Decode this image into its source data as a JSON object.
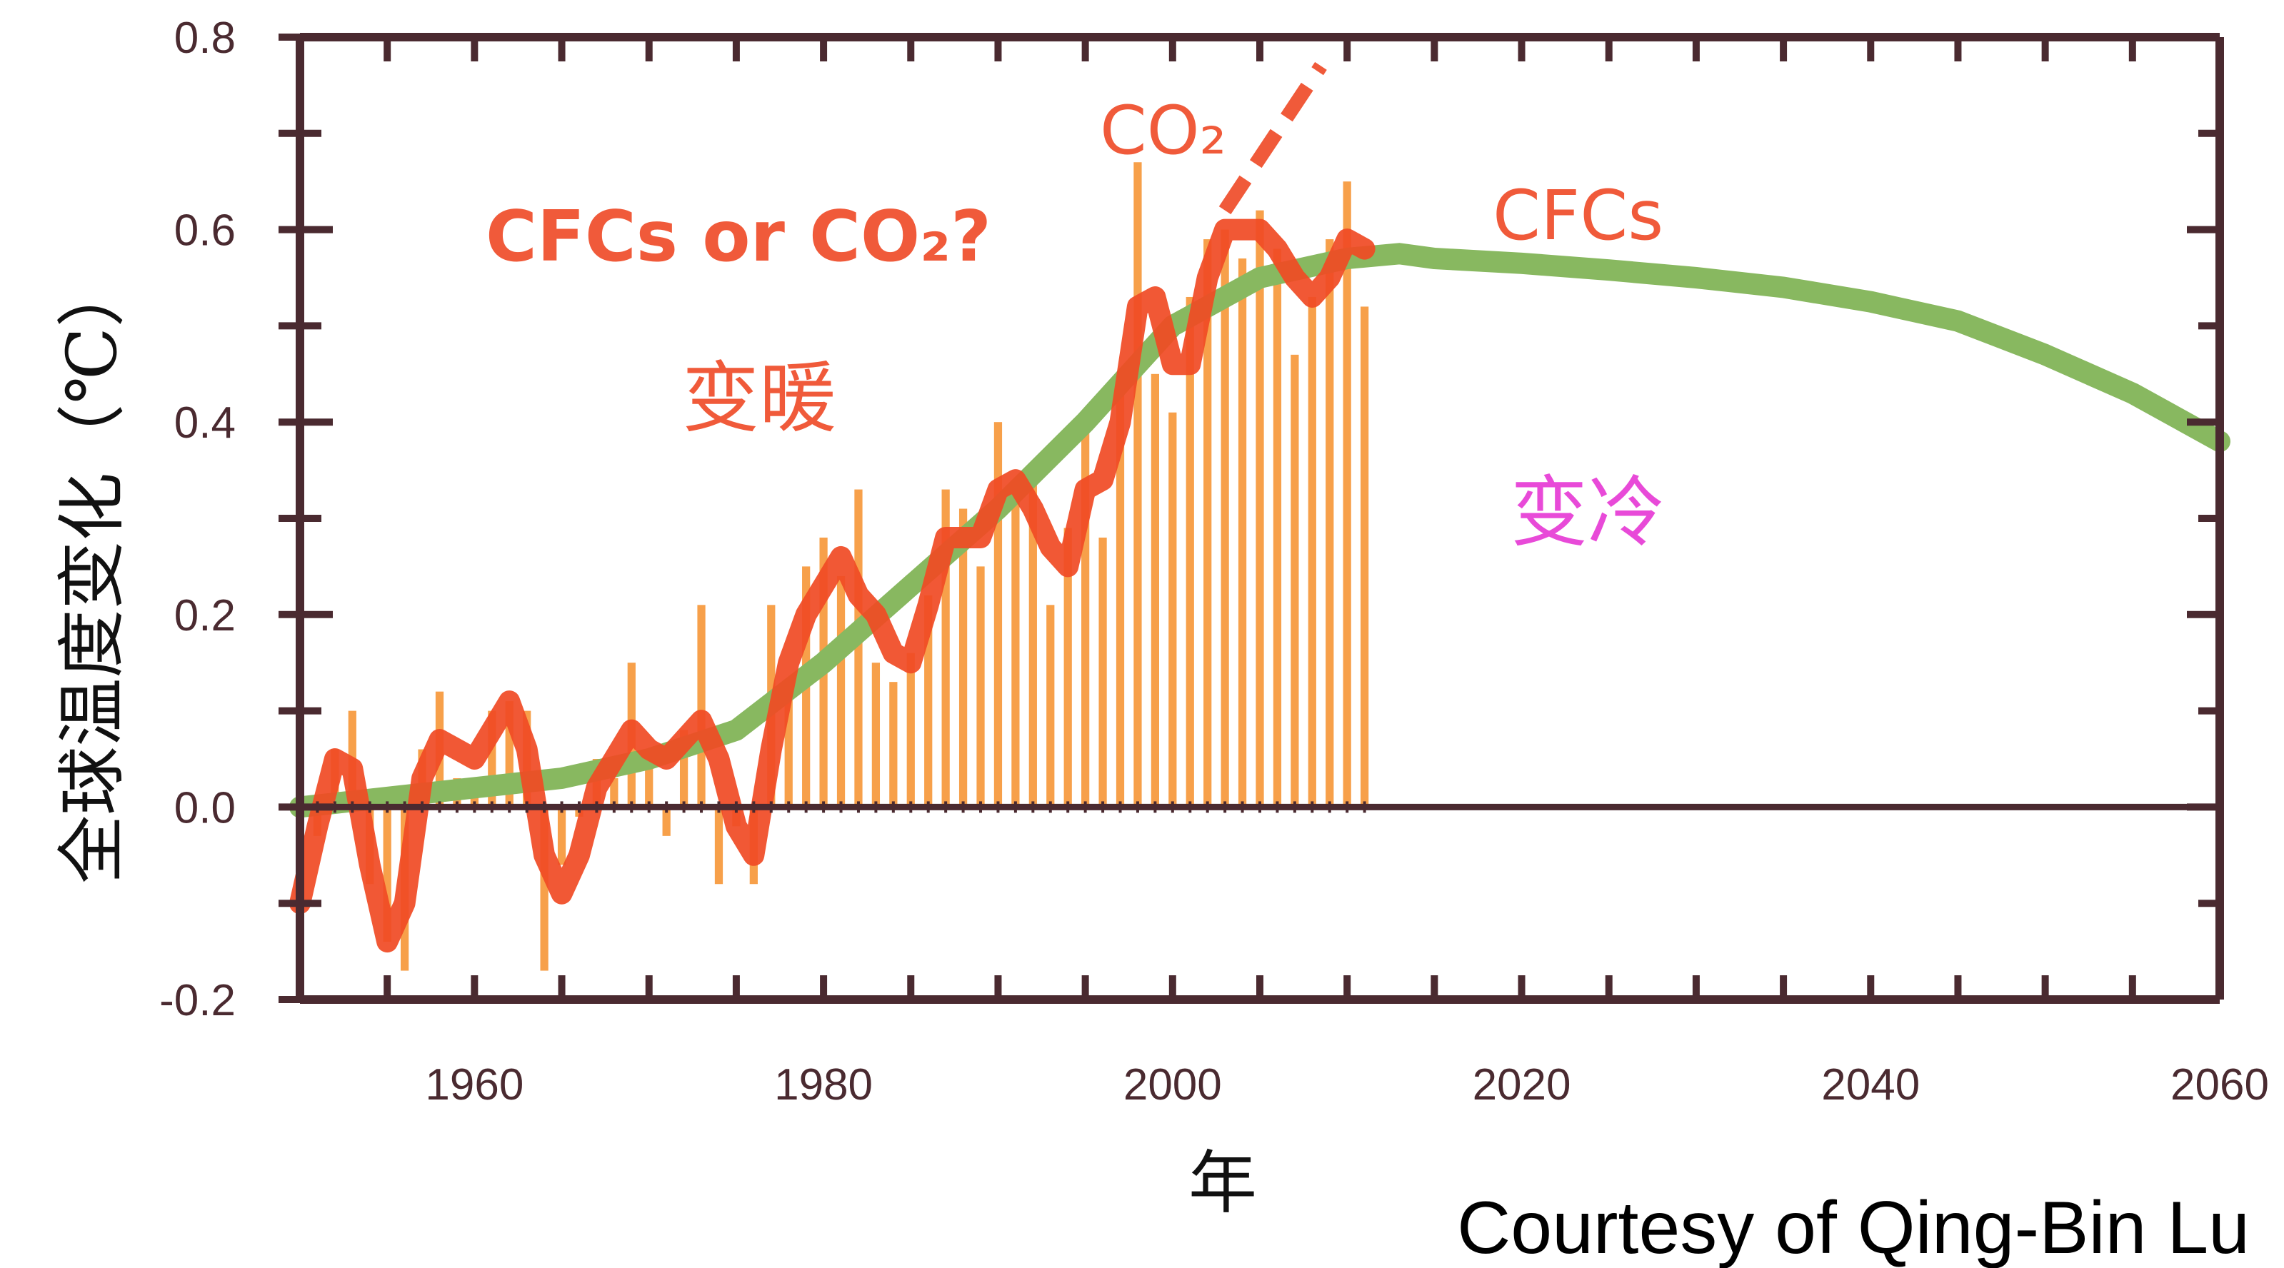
{
  "chart_data": {
    "type": "bar",
    "ylabel": "全球温度变化（℃）",
    "xlabel": "年",
    "xlim": [
      1950,
      2060
    ],
    "ylim": [
      -0.2,
      0.8
    ],
    "xticks": [
      "1960",
      "1980",
      "2000",
      "2020",
      "2040",
      "2060"
    ],
    "yticks": [
      "0.8",
      "0.6",
      "0.4",
      "0.2",
      "0.0",
      "-0.2"
    ],
    "grid": false,
    "colors": {
      "bars": "#f7a04a",
      "observed": "#f04a24",
      "co2": "#f05a3a",
      "cfc": "#88b860",
      "axis": "#4a2a30",
      "cooling": "#e84ad8"
    },
    "series": [
      {
        "kind": "bar",
        "x": [
          1950,
          1951,
          1952,
          1953,
          1954,
          1955,
          1956,
          1957,
          1958,
          1959,
          1960,
          1961,
          1962,
          1963,
          1964,
          1965,
          1966,
          1967,
          1968,
          1969,
          1970,
          1971,
          1972,
          1973,
          1974,
          1975,
          1976,
          1977,
          1978,
          1979,
          1980,
          1981,
          1982,
          1983,
          1984,
          1985,
          1986,
          1987,
          1988,
          1989,
          1990,
          1991,
          1992,
          1993,
          1994,
          1995,
          1996,
          1997,
          1998,
          1999,
          2000,
          2001,
          2002,
          2003,
          2004,
          2005,
          2006,
          2007,
          2008,
          2009,
          2010,
          2011
        ],
        "values": [
          -0.19,
          -0.03,
          0.06,
          0.1,
          -0.08,
          -0.14,
          -0.17,
          0.06,
          0.12,
          0.03,
          0.03,
          0.1,
          0.11,
          0.1,
          -0.17,
          -0.06,
          -0.01,
          0.05,
          0.03,
          0.15,
          0.06,
          -0.03,
          0.08,
          0.21,
          -0.08,
          -0.02,
          -0.08,
          0.21,
          0.13,
          0.25,
          0.28,
          0.24,
          0.33,
          0.15,
          0.13,
          0.16,
          0.22,
          0.33,
          0.31,
          0.25,
          0.4,
          0.32,
          0.35,
          0.21,
          0.29,
          0.4,
          0.28,
          0.45,
          0.67,
          0.45,
          0.41,
          0.53,
          0.59,
          0.6,
          0.57,
          0.62,
          0.58,
          0.47,
          0.53,
          0.59,
          0.65,
          0.52
        ]
      },
      {
        "kind": "line",
        "x": [
          1950,
          1951,
          1952,
          1953,
          1954,
          1955,
          1956,
          1957,
          1958,
          1959,
          1960,
          1961,
          1962,
          1963,
          1964,
          1965,
          1966,
          1967,
          1968,
          1969,
          1970,
          1971,
          1972,
          1973,
          1974,
          1975,
          1976,
          1977,
          1978,
          1979,
          1980,
          1981,
          1982,
          1983,
          1984,
          1985,
          1986,
          1987,
          1988,
          1989,
          1990,
          1991,
          1992,
          1993,
          1994,
          1995,
          1996,
          1997,
          1998,
          1999,
          2000,
          2001,
          2002,
          2003,
          2004,
          2005,
          2006,
          2007,
          2008,
          2009,
          2010,
          2011
        ],
        "values": [
          -0.1,
          -0.02,
          0.05,
          0.04,
          -0.06,
          -0.14,
          -0.1,
          0.03,
          0.07,
          0.06,
          0.05,
          0.08,
          0.11,
          0.06,
          -0.05,
          -0.09,
          -0.05,
          0.02,
          0.05,
          0.08,
          0.06,
          0.05,
          0.07,
          0.09,
          0.05,
          -0.02,
          -0.05,
          0.06,
          0.15,
          0.2,
          0.23,
          0.26,
          0.22,
          0.2,
          0.16,
          0.15,
          0.21,
          0.28,
          0.28,
          0.28,
          0.33,
          0.34,
          0.31,
          0.27,
          0.25,
          0.33,
          0.34,
          0.4,
          0.52,
          0.53,
          0.46,
          0.46,
          0.55,
          0.6,
          0.6,
          0.6,
          0.58,
          0.55,
          0.53,
          0.55,
          0.59,
          0.58
        ]
      },
      {
        "kind": "line",
        "name": "CFCs",
        "x": [
          1950,
          1955,
          1960,
          1965,
          1970,
          1975,
          1980,
          1985,
          1990,
          1995,
          2000,
          2005,
          2010,
          2013,
          2015,
          2020,
          2025,
          2030,
          2035,
          2040,
          2045,
          2050,
          2055,
          2060
        ],
        "values": [
          0.0,
          0.01,
          0.02,
          0.03,
          0.05,
          0.08,
          0.15,
          0.23,
          0.31,
          0.4,
          0.5,
          0.55,
          0.57,
          0.575,
          0.57,
          0.565,
          0.558,
          0.55,
          0.54,
          0.525,
          0.505,
          0.47,
          0.43,
          0.38
        ]
      },
      {
        "kind": "line",
        "name": "CO2",
        "x": [
          2003,
          2008.5
        ],
        "values": [
          0.62,
          0.77
        ]
      }
    ],
    "annotations": [
      {
        "text": "CFCs or CO₂?",
        "color": "#f05a3a"
      },
      {
        "text": "CO₂",
        "color": "#f05a3a"
      },
      {
        "text": "CFCs",
        "color": "#f05a3a"
      },
      {
        "text": "变暖",
        "color": "#f05a3a"
      },
      {
        "text": "变冷",
        "color": "#e84ad8"
      }
    ]
  },
  "credit": "Courtesy of Qing-Bin Lu"
}
